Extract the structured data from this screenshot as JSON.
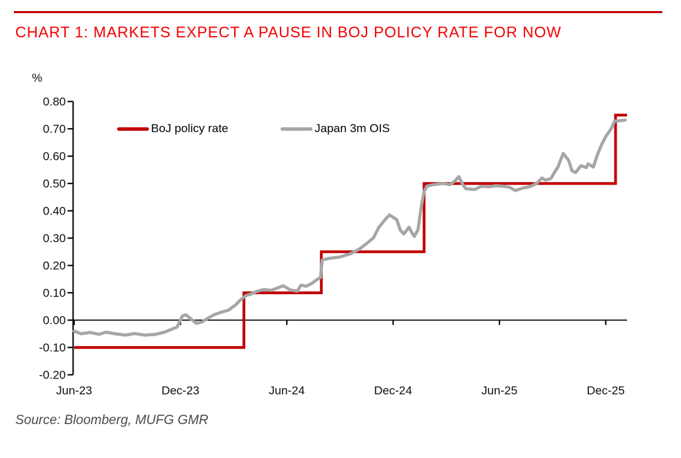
{
  "header": {
    "title": "CHART 1: MARKETS EXPECT A PAUSE IN BOJ POLICY RATE FOR NOW"
  },
  "source": {
    "text": "Source: Bloomberg, MUFG GMR"
  },
  "colors": {
    "title_red": "#F20000",
    "rule_red": "#C00000",
    "boj_line_red": "#C00000",
    "ois_line_gray": "#A6A6A6",
    "axis_black": "#000000",
    "source_gray": "#4a4a4a"
  },
  "legend": [
    {
      "label": "BoJ policy rate",
      "color": "#C00000"
    },
    {
      "label": "Japan 3m OIS",
      "color": "#A6A6A6"
    }
  ],
  "chart_data": {
    "type": "line",
    "title": "CHART 1: MARKETS EXPECT A PAUSE IN BOJ POLICY RATE FOR NOW",
    "ylabel": "%",
    "grid": false,
    "legend_position": "top-inside",
    "y_axis": {
      "range": [
        -0.2,
        0.8
      ],
      "ticks": [
        0.8,
        0.7,
        0.6,
        0.5,
        0.4,
        0.3,
        0.2,
        0.1,
        0.0,
        -0.1,
        -0.2
      ]
    },
    "x_axis": {
      "tick_labels": [
        "Jun-23",
        "Dec-23",
        "Jun-24",
        "Dec-24",
        "Jun-25",
        "Dec-25"
      ],
      "tick_positions_months": [
        0,
        6,
        12,
        18,
        24,
        30
      ],
      "range_months": [
        0,
        31.2
      ],
      "axis_at_value": 0.0
    },
    "series": [
      {
        "name": "BoJ policy rate",
        "color": "#C00000",
        "style": "step",
        "stroke_width": 4,
        "points_months_value": [
          [
            0,
            -0.1
          ],
          [
            9.58,
            -0.1
          ],
          [
            9.58,
            0.1
          ],
          [
            13.95,
            0.1
          ],
          [
            13.95,
            0.25
          ],
          [
            19.75,
            0.25
          ],
          [
            19.75,
            0.5
          ],
          [
            30.55,
            0.5
          ],
          [
            30.55,
            0.75
          ],
          [
            31.2,
            0.75
          ]
        ]
      },
      {
        "name": "Japan 3m OIS",
        "color": "#A6A6A6",
        "style": "line",
        "stroke_width": 4.5,
        "points_months_value": [
          [
            0.0,
            -0.04
          ],
          [
            0.4,
            -0.05
          ],
          [
            0.9,
            -0.045
          ],
          [
            1.4,
            -0.052
          ],
          [
            1.8,
            -0.044
          ],
          [
            2.3,
            -0.05
          ],
          [
            2.9,
            -0.055
          ],
          [
            3.4,
            -0.049
          ],
          [
            4.0,
            -0.055
          ],
          [
            4.6,
            -0.052
          ],
          [
            5.1,
            -0.044
          ],
          [
            5.6,
            -0.031
          ],
          [
            5.8,
            -0.026
          ],
          [
            6.1,
            0.014
          ],
          [
            6.3,
            0.02
          ],
          [
            6.6,
            0.004
          ],
          [
            6.9,
            -0.012
          ],
          [
            7.2,
            -0.007
          ],
          [
            7.5,
            0.005
          ],
          [
            7.9,
            0.02
          ],
          [
            8.4,
            0.031
          ],
          [
            8.7,
            0.036
          ],
          [
            9.1,
            0.055
          ],
          [
            9.4,
            0.075
          ],
          [
            9.7,
            0.09
          ],
          [
            10.0,
            0.096
          ],
          [
            10.3,
            0.105
          ],
          [
            10.7,
            0.112
          ],
          [
            11.1,
            0.109
          ],
          [
            11.5,
            0.118
          ],
          [
            11.8,
            0.126
          ],
          [
            12.2,
            0.11
          ],
          [
            12.6,
            0.106
          ],
          [
            12.8,
            0.128
          ],
          [
            13.1,
            0.124
          ],
          [
            13.4,
            0.134
          ],
          [
            13.7,
            0.148
          ],
          [
            13.9,
            0.156
          ],
          [
            14.0,
            0.22
          ],
          [
            14.4,
            0.226
          ],
          [
            15.0,
            0.231
          ],
          [
            15.6,
            0.243
          ],
          [
            16.1,
            0.26
          ],
          [
            16.6,
            0.285
          ],
          [
            16.9,
            0.302
          ],
          [
            17.2,
            0.34
          ],
          [
            17.6,
            0.372
          ],
          [
            17.8,
            0.385
          ],
          [
            18.0,
            0.376
          ],
          [
            18.2,
            0.368
          ],
          [
            18.4,
            0.33
          ],
          [
            18.6,
            0.315
          ],
          [
            18.9,
            0.34
          ],
          [
            19.0,
            0.326
          ],
          [
            19.2,
            0.306
          ],
          [
            19.4,
            0.33
          ],
          [
            19.6,
            0.42
          ],
          [
            19.75,
            0.47
          ],
          [
            19.9,
            0.49
          ],
          [
            20.3,
            0.496
          ],
          [
            20.8,
            0.5
          ],
          [
            21.2,
            0.496
          ],
          [
            21.5,
            0.51
          ],
          [
            21.7,
            0.525
          ],
          [
            21.9,
            0.5
          ],
          [
            22.1,
            0.481
          ],
          [
            22.6,
            0.478
          ],
          [
            23.0,
            0.49
          ],
          [
            23.4,
            0.488
          ],
          [
            23.8,
            0.492
          ],
          [
            24.2,
            0.49
          ],
          [
            24.6,
            0.485
          ],
          [
            24.9,
            0.474
          ],
          [
            25.3,
            0.483
          ],
          [
            25.7,
            0.488
          ],
          [
            26.1,
            0.5
          ],
          [
            26.4,
            0.52
          ],
          [
            26.6,
            0.512
          ],
          [
            26.9,
            0.518
          ],
          [
            27.1,
            0.54
          ],
          [
            27.3,
            0.56
          ],
          [
            27.6,
            0.61
          ],
          [
            27.9,
            0.585
          ],
          [
            28.1,
            0.546
          ],
          [
            28.3,
            0.54
          ],
          [
            28.6,
            0.565
          ],
          [
            28.9,
            0.558
          ],
          [
            29.0,
            0.572
          ],
          [
            29.3,
            0.56
          ],
          [
            29.5,
            0.6
          ],
          [
            29.75,
            0.64
          ],
          [
            30.0,
            0.672
          ],
          [
            30.3,
            0.7
          ],
          [
            30.5,
            0.728
          ],
          [
            30.85,
            0.73
          ],
          [
            31.1,
            0.732
          ]
        ]
      }
    ]
  }
}
